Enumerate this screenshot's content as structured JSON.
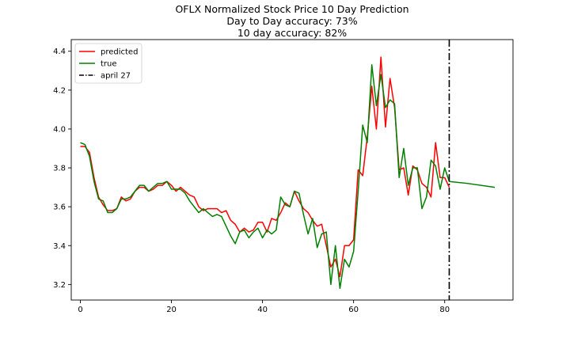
{
  "chart_data": {
    "type": "line",
    "title": "OFLX Normalized Stock Price 10 Day Prediction",
    "subtitle_lines": [
      "Day to Day accuracy: 73%",
      "10 day accuracy: 82%"
    ],
    "xlabel": "",
    "ylabel": "",
    "xlim": [
      -2,
      95
    ],
    "ylim": [
      3.12,
      4.46
    ],
    "x_ticks": [
      0,
      20,
      40,
      60,
      80
    ],
    "y_ticks": [
      3.2,
      3.4,
      3.6,
      3.8,
      4.0,
      4.2,
      4.4
    ],
    "x_tick_labels": [
      "0",
      "20",
      "40",
      "60",
      "80"
    ],
    "y_tick_labels": [
      "3.2",
      "3.4",
      "3.6",
      "3.8",
      "4.0",
      "4.2",
      "4.4"
    ],
    "grid": false,
    "legend": {
      "position": "top-left",
      "entries": [
        {
          "label": "predicted",
          "color": "#ff0000",
          "style": "solid"
        },
        {
          "label": "true",
          "color": "#008000",
          "style": "solid"
        },
        {
          "label": "april 27",
          "color": "#000000",
          "style": "dashdot"
        }
      ]
    },
    "series": [
      {
        "name": "predicted",
        "color": "#ff0000",
        "x": [
          0,
          1,
          2,
          3,
          4,
          5,
          6,
          7,
          8,
          9,
          10,
          11,
          12,
          13,
          14,
          15,
          16,
          17,
          18,
          19,
          20,
          21,
          22,
          23,
          24,
          25,
          26,
          27,
          28,
          29,
          30,
          31,
          32,
          33,
          34,
          35,
          36,
          37,
          38,
          39,
          40,
          41,
          42,
          43,
          44,
          45,
          46,
          47,
          48,
          49,
          50,
          51,
          52,
          53,
          54,
          55,
          56,
          57,
          58,
          59,
          60,
          61,
          62,
          63,
          64,
          65,
          66,
          67,
          68,
          69,
          70,
          71,
          72,
          73,
          74,
          75,
          76,
          77,
          78,
          79,
          80,
          81
        ],
        "y": [
          3.91,
          3.91,
          3.88,
          3.75,
          3.65,
          3.61,
          3.58,
          3.58,
          3.59,
          3.65,
          3.63,
          3.64,
          3.68,
          3.7,
          3.7,
          3.68,
          3.69,
          3.71,
          3.71,
          3.73,
          3.71,
          3.68,
          3.7,
          3.68,
          3.66,
          3.65,
          3.6,
          3.58,
          3.59,
          3.59,
          3.59,
          3.57,
          3.58,
          3.53,
          3.51,
          3.47,
          3.49,
          3.47,
          3.48,
          3.52,
          3.52,
          3.47,
          3.54,
          3.53,
          3.57,
          3.62,
          3.6,
          3.68,
          3.63,
          3.59,
          3.57,
          3.53,
          3.5,
          3.51,
          3.4,
          3.29,
          3.33,
          3.24,
          3.4,
          3.4,
          3.43,
          3.79,
          3.76,
          3.96,
          4.22,
          4.0,
          4.37,
          4.01,
          4.26,
          4.11,
          3.79,
          3.8,
          3.66,
          3.81,
          3.79,
          3.72,
          3.7,
          3.65,
          3.93,
          3.75,
          3.75,
          3.7
        ]
      },
      {
        "name": "true",
        "color": "#008000",
        "x": [
          0,
          1,
          2,
          3,
          4,
          5,
          6,
          7,
          8,
          9,
          10,
          11,
          12,
          13,
          14,
          15,
          16,
          17,
          18,
          19,
          20,
          21,
          22,
          23,
          24,
          25,
          26,
          27,
          28,
          29,
          30,
          31,
          32,
          33,
          34,
          35,
          36,
          37,
          38,
          39,
          40,
          41,
          42,
          43,
          44,
          45,
          46,
          47,
          48,
          49,
          50,
          51,
          52,
          53,
          54,
          55,
          56,
          57,
          58,
          59,
          60,
          61,
          62,
          63,
          64,
          65,
          66,
          67,
          68,
          69,
          70,
          71,
          72,
          73,
          74,
          75,
          76,
          77,
          78,
          79,
          80,
          81,
          85,
          91
        ],
        "y": [
          3.93,
          3.92,
          3.86,
          3.73,
          3.64,
          3.63,
          3.57,
          3.57,
          3.59,
          3.64,
          3.64,
          3.65,
          3.68,
          3.71,
          3.71,
          3.68,
          3.7,
          3.72,
          3.72,
          3.73,
          3.69,
          3.69,
          3.69,
          3.67,
          3.63,
          3.6,
          3.57,
          3.59,
          3.57,
          3.55,
          3.56,
          3.55,
          3.5,
          3.45,
          3.41,
          3.47,
          3.48,
          3.44,
          3.47,
          3.49,
          3.44,
          3.48,
          3.46,
          3.48,
          3.65,
          3.61,
          3.6,
          3.68,
          3.67,
          3.56,
          3.46,
          3.54,
          3.39,
          3.46,
          3.47,
          3.2,
          3.4,
          3.18,
          3.33,
          3.29,
          3.37,
          3.68,
          4.02,
          3.93,
          4.33,
          4.12,
          4.28,
          4.11,
          4.15,
          4.13,
          3.75,
          3.9,
          3.71,
          3.8,
          3.8,
          3.59,
          3.65,
          3.84,
          3.81,
          3.69,
          3.8,
          3.73,
          3.72,
          3.7
        ]
      }
    ],
    "vlines": [
      {
        "name": "april 27",
        "x": 81,
        "color": "#000000",
        "style": "dashdot"
      }
    ]
  }
}
